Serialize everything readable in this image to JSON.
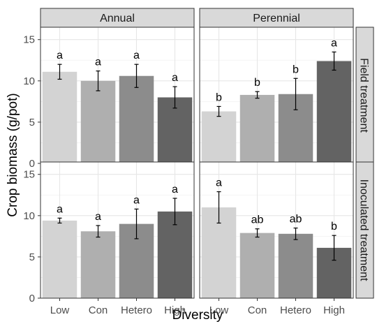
{
  "chart_data": {
    "type": "bar",
    "xlabel": "Diversity",
    "ylabel": "Crop biomass (g/pot)",
    "categories": [
      "Low",
      "Con",
      "Hetero",
      "High"
    ],
    "column_facets": [
      "Annual",
      "Perennial"
    ],
    "row_facets": [
      "Field treatment",
      "Inoculated treatment"
    ],
    "ylim": [
      0,
      16.5
    ],
    "yticks": [
      0,
      5,
      10,
      15
    ],
    "grid": true,
    "bar_colors": [
      "#d3d3d3",
      "#afafaf",
      "#8c8c8c",
      "#636363"
    ],
    "panels": [
      {
        "row": "Field treatment",
        "column": "Annual",
        "values": [
          11.1,
          10.0,
          10.6,
          8.0
        ],
        "errors": [
          0.9,
          1.2,
          1.4,
          1.3
        ],
        "letters": [
          "a",
          "a",
          "a",
          "a"
        ]
      },
      {
        "row": "Field treatment",
        "column": "Perennial",
        "values": [
          6.3,
          8.3,
          8.4,
          12.4
        ],
        "errors": [
          0.6,
          0.4,
          1.9,
          1.1
        ],
        "letters": [
          "b",
          "b",
          "b",
          "a"
        ]
      },
      {
        "row": "Inoculated treatment",
        "column": "Annual",
        "values": [
          9.4,
          8.1,
          9.0,
          10.5
        ],
        "errors": [
          0.3,
          0.7,
          1.8,
          1.6
        ],
        "letters": [
          "a",
          "a",
          "a",
          "a"
        ]
      },
      {
        "row": "Inoculated treatment",
        "column": "Perennial",
        "values": [
          11.0,
          7.9,
          7.8,
          6.1
        ],
        "errors": [
          1.9,
          0.5,
          0.7,
          1.5
        ],
        "letters": [
          "a",
          "ab",
          "ab",
          "b"
        ]
      }
    ]
  }
}
